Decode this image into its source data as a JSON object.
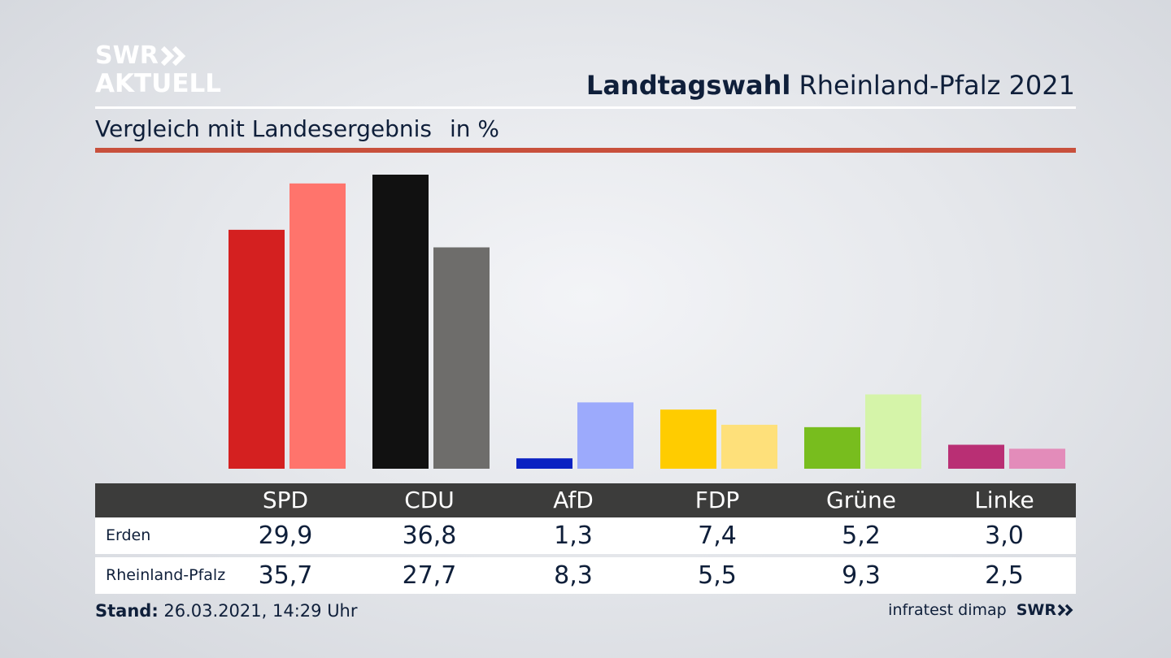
{
  "branding": {
    "logo_line1": "SWR",
    "logo_line2": "AKTUELL",
    "footer_logo": "SWR"
  },
  "header": {
    "title_bold": "Landtagswahl",
    "title_rest": "Rheinland-Pfalz 2021"
  },
  "subtitle": {
    "text": "Vergleich mit Landesergebnis",
    "unit": "in %"
  },
  "colors": {
    "accent_rule": "#c8503c",
    "table_header": "#3c3c3b",
    "erden": [
      "#d42020",
      "#111111",
      "#0b22c2",
      "#ffcc00",
      "#78bd1e",
      "#b92f74"
    ],
    "landesergebnis": [
      "#ff746c",
      "#6e6d6b",
      "#9caafc",
      "#fee07a",
      "#d5f4a9",
      "#e38cba"
    ]
  },
  "chart_data": {
    "type": "bar",
    "title": "Landtagswahl Rheinland-Pfalz 2021",
    "subtitle": "Vergleich mit Landesergebnis",
    "ylabel": "in %",
    "categories": [
      "SPD",
      "CDU",
      "AfD",
      "FDP",
      "Grüne",
      "Linke"
    ],
    "series": [
      {
        "name": "Erden",
        "values": [
          29.9,
          36.8,
          1.3,
          7.4,
          5.2,
          3.0
        ],
        "labels": [
          "29,9",
          "36,8",
          "1,3",
          "7,4",
          "5,2",
          "3,0"
        ]
      },
      {
        "name": "Rheinland-Pfalz",
        "values": [
          35.7,
          27.7,
          8.3,
          5.5,
          9.3,
          2.5
        ],
        "labels": [
          "35,7",
          "27,7",
          "8,3",
          "5,5",
          "9,3",
          "2,5"
        ]
      }
    ],
    "ylim": [
      0,
      36.8
    ],
    "grid": false,
    "legend": "table-below"
  },
  "footer": {
    "stand_label": "Stand:",
    "stand_value": "26.03.2021, 14:29 Uhr",
    "source": "infratest dimap"
  }
}
